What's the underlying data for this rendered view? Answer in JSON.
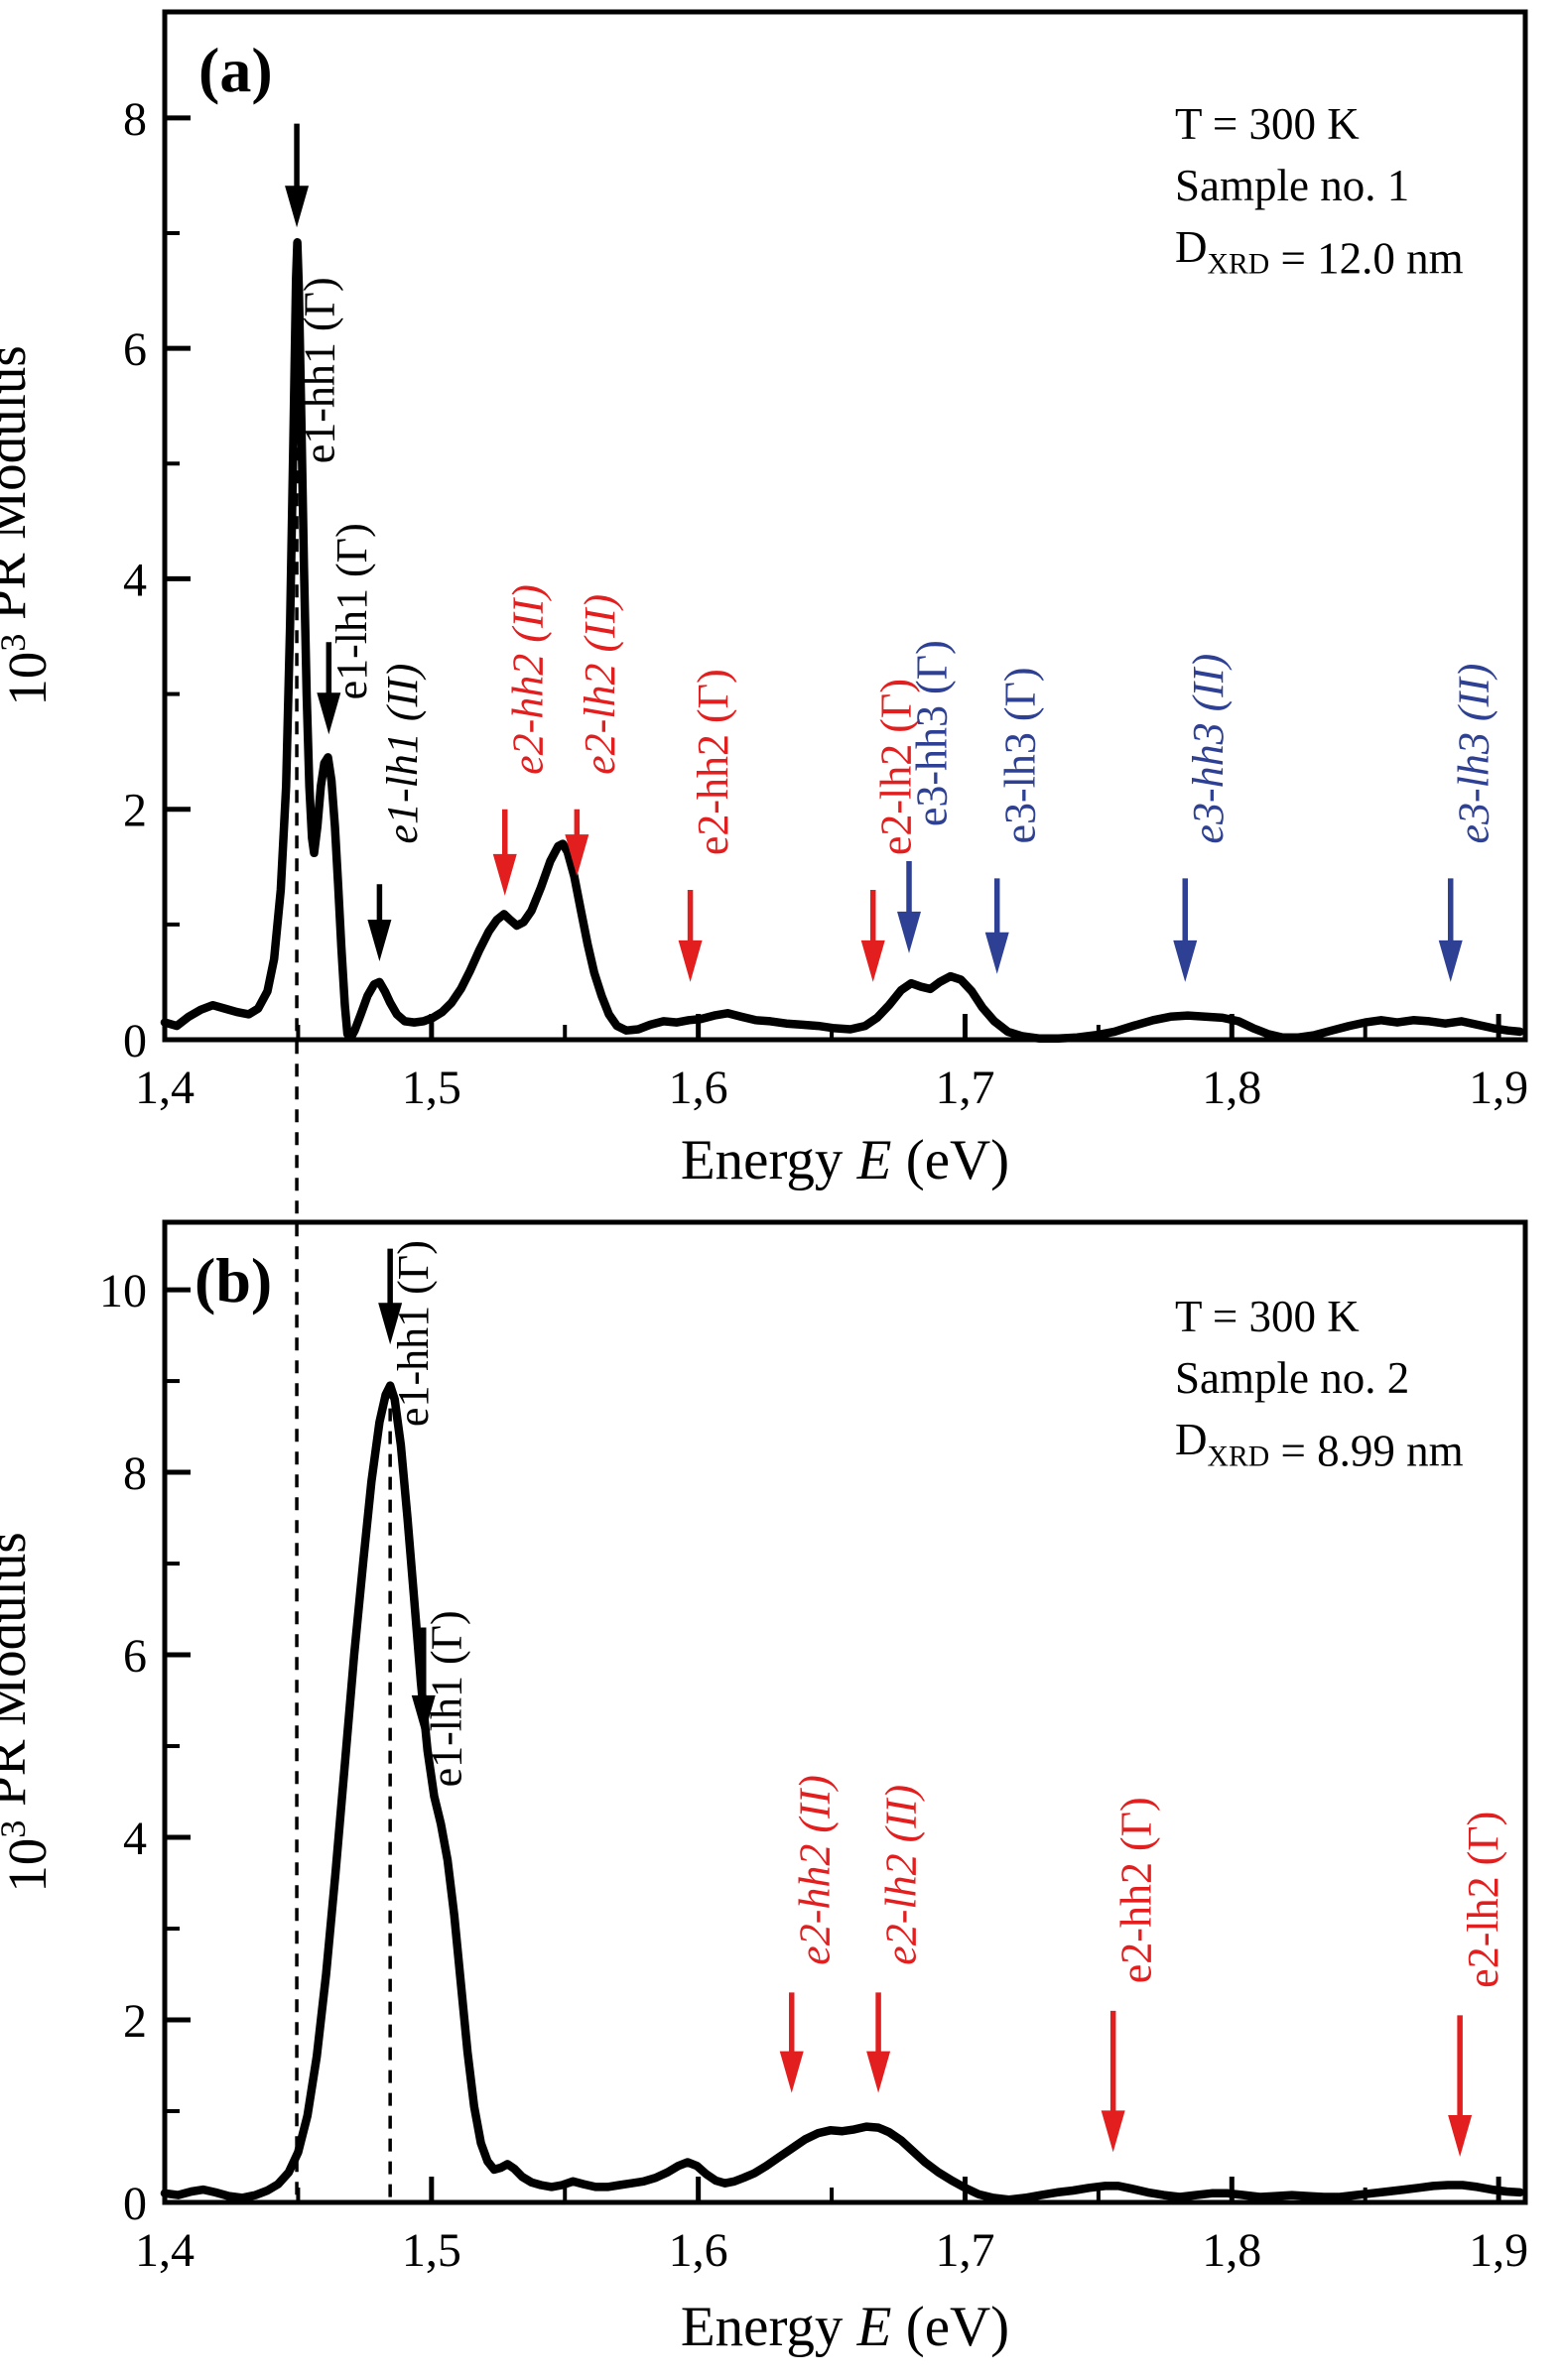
{
  "figure": {
    "background": "#ffffff",
    "colors": {
      "black": "#000000",
      "red": "#e31e1e",
      "blue": "#2e4093"
    },
    "xlabel_runs": [
      {
        "t": "Energy "
      },
      {
        "t": "E",
        "italic": true
      },
      {
        "t": " (eV)"
      }
    ],
    "ylabel_runs": [
      {
        "t": "10"
      },
      {
        "t": "3",
        "sup": true
      },
      {
        "t": " PR Modulus"
      }
    ]
  },
  "chart_data": [
    {
      "type": "line",
      "panel_label": "(a)",
      "info_lines": [
        [
          {
            "t": "T = 300 K"
          }
        ],
        [
          {
            "t": "Sample no. 1"
          }
        ],
        [
          {
            "t": "D"
          },
          {
            "t": "XRD",
            "sub": true
          },
          {
            "t": " = 12.0 nm"
          }
        ]
      ],
      "xlim": [
        1.4,
        1.91
      ],
      "ylim": [
        0,
        8.92
      ],
      "xticks": [
        {
          "v": 1.4,
          "label": "1,4"
        },
        {
          "v": 1.5,
          "label": "1,5"
        },
        {
          "v": 1.6,
          "label": "1,6"
        },
        {
          "v": 1.7,
          "label": "1,7"
        },
        {
          "v": 1.8,
          "label": "1,8"
        },
        {
          "v": 1.9,
          "label": "1,9"
        }
      ],
      "xminor": [
        1.45,
        1.55,
        1.65,
        1.75,
        1.85
      ],
      "yticks": [
        {
          "v": 0,
          "label": "0"
        },
        {
          "v": 2,
          "label": "2"
        },
        {
          "v": 4,
          "label": "4"
        },
        {
          "v": 6,
          "label": "6"
        },
        {
          "v": 8,
          "label": "8"
        }
      ],
      "yminor": [
        1,
        3,
        5,
        7
      ],
      "series": {
        "name": "PR modulus spectrum sample 1",
        "color": "black",
        "x": [
          1.4,
          1.4045,
          1.409,
          1.4135,
          1.418,
          1.4225,
          1.427,
          1.4315,
          1.435,
          1.4385,
          1.441,
          1.4435,
          1.4455,
          1.447,
          1.4482,
          1.4492,
          1.4497,
          1.4503,
          1.4512,
          1.4522,
          1.4532,
          1.4542,
          1.4552,
          1.456,
          1.4572,
          1.4585,
          1.4598,
          1.4612,
          1.4625,
          1.4638,
          1.465,
          1.4662,
          1.4675,
          1.4685,
          1.4698,
          1.4712,
          1.4735,
          1.476,
          1.4785,
          1.4805,
          1.4825,
          1.4845,
          1.487,
          1.49,
          1.4935,
          1.497,
          1.5005,
          1.504,
          1.5075,
          1.511,
          1.5145,
          1.518,
          1.5215,
          1.5245,
          1.5272,
          1.5295,
          1.532,
          1.5345,
          1.5375,
          1.541,
          1.5445,
          1.5475,
          1.5492,
          1.551,
          1.5535,
          1.556,
          1.5585,
          1.561,
          1.5638,
          1.5665,
          1.5695,
          1.573,
          1.5775,
          1.582,
          1.587,
          1.592,
          1.5965,
          1.601,
          1.606,
          1.611,
          1.616,
          1.6215,
          1.627,
          1.633,
          1.639,
          1.645,
          1.651,
          1.657,
          1.6625,
          1.667,
          1.6715,
          1.676,
          1.6798,
          1.6835,
          1.687,
          1.6905,
          1.6945,
          1.6985,
          1.7025,
          1.7065,
          1.711,
          1.716,
          1.7215,
          1.728,
          1.735,
          1.742,
          1.749,
          1.756,
          1.763,
          1.7705,
          1.777,
          1.7835,
          1.79,
          1.7965,
          1.8025,
          1.808,
          1.8135,
          1.819,
          1.825,
          1.831,
          1.8375,
          1.844,
          1.85,
          1.856,
          1.862,
          1.868,
          1.874,
          1.88,
          1.886,
          1.892,
          1.898,
          1.9035,
          1.908
        ],
        "y": [
          0.15,
          0.12,
          0.2,
          0.26,
          0.3,
          0.27,
          0.24,
          0.22,
          0.27,
          0.42,
          0.7,
          1.3,
          2.2,
          3.6,
          5.2,
          6.6,
          6.92,
          6.5,
          5.4,
          4.1,
          3.0,
          2.2,
          1.75,
          1.62,
          1.85,
          2.2,
          2.4,
          2.45,
          2.25,
          1.85,
          1.35,
          0.8,
          0.3,
          0.05,
          0.02,
          0.08,
          0.22,
          0.38,
          0.48,
          0.5,
          0.42,
          0.32,
          0.22,
          0.16,
          0.15,
          0.16,
          0.19,
          0.24,
          0.32,
          0.44,
          0.6,
          0.78,
          0.94,
          1.04,
          1.09,
          1.04,
          0.99,
          1.02,
          1.12,
          1.32,
          1.55,
          1.68,
          1.7,
          1.63,
          1.42,
          1.12,
          0.83,
          0.58,
          0.38,
          0.22,
          0.12,
          0.08,
          0.09,
          0.13,
          0.16,
          0.15,
          0.17,
          0.18,
          0.21,
          0.23,
          0.2,
          0.17,
          0.16,
          0.14,
          0.13,
          0.12,
          0.1,
          0.09,
          0.12,
          0.19,
          0.3,
          0.43,
          0.49,
          0.46,
          0.44,
          0.5,
          0.55,
          0.52,
          0.42,
          0.28,
          0.16,
          0.07,
          0.03,
          0.01,
          0.01,
          0.02,
          0.04,
          0.07,
          0.12,
          0.17,
          0.2,
          0.21,
          0.2,
          0.19,
          0.16,
          0.1,
          0.05,
          0.02,
          0.02,
          0.04,
          0.08,
          0.12,
          0.15,
          0.17,
          0.15,
          0.17,
          0.16,
          0.14,
          0.16,
          0.13,
          0.1,
          0.08,
          0.07
        ]
      },
      "annotations": [
        {
          "label": "e1-hh1 (Γ)",
          "color": "black",
          "italic": false,
          "arrow_x": 1.4495,
          "arrow_from": 7.95,
          "arrow_to": 7.05,
          "label_x": 1.4635,
          "label_y": 5.0
        },
        {
          "label": "e1-lh1 (Γ)",
          "color": "black",
          "italic": false,
          "arrow_x": 1.4615,
          "arrow_from": 3.45,
          "arrow_to": 2.65,
          "label_x": 1.4755,
          "label_y": 2.95
        },
        {
          "label": "e1-lh1 (II)",
          "color": "black",
          "italic": true,
          "arrow_x": 1.4805,
          "arrow_from": 1.35,
          "arrow_to": 0.68,
          "label_x": 1.4945,
          "label_y": 1.7
        },
        {
          "label": "e2-hh2 (II)",
          "color": "red",
          "italic": true,
          "arrow_x": 1.5275,
          "arrow_from": 2.0,
          "arrow_to": 1.25,
          "label_x": 1.5415,
          "label_y": 2.3
        },
        {
          "label": "e2-lh2 (II)",
          "color": "red",
          "italic": true,
          "arrow_x": 1.5545,
          "arrow_from": 2.0,
          "arrow_to": 1.42,
          "label_x": 1.5685,
          "label_y": 2.3
        },
        {
          "label": "e2-hh2 (Γ)",
          "color": "red",
          "italic": false,
          "arrow_x": 1.597,
          "arrow_from": 1.3,
          "arrow_to": 0.5,
          "label_x": 1.611,
          "label_y": 1.6
        },
        {
          "label": "e2-lh2 (Γ)",
          "color": "red",
          "italic": false,
          "arrow_x": 1.6655,
          "arrow_from": 1.3,
          "arrow_to": 0.5,
          "label_x": 1.6795,
          "label_y": 1.6
        },
        {
          "label": "e3-hh3 (Γ)",
          "color": "blue",
          "italic": false,
          "arrow_x": 1.679,
          "arrow_from": 1.55,
          "arrow_to": 0.75,
          "label_x": 1.693,
          "label_y": 1.85
        },
        {
          "label": "e3-lh3 (Γ)",
          "color": "blue",
          "italic": false,
          "arrow_x": 1.712,
          "arrow_from": 1.4,
          "arrow_to": 0.57,
          "label_x": 1.726,
          "label_y": 1.7
        },
        {
          "label": "e3-hh3 (II)",
          "color": "blue",
          "italic": true,
          "arrow_x": 1.7825,
          "arrow_from": 1.4,
          "arrow_to": 0.5,
          "label_x": 1.7965,
          "label_y": 1.7
        },
        {
          "label": "e3-lh3 (II)",
          "color": "blue",
          "italic": true,
          "arrow_x": 1.882,
          "arrow_from": 1.4,
          "arrow_to": 0.5,
          "label_x": 1.896,
          "label_y": 1.7
        }
      ]
    },
    {
      "type": "line",
      "panel_label": "(b)",
      "info_lines": [
        [
          {
            "t": "T = 300 K"
          }
        ],
        [
          {
            "t": "Sample no. 2"
          }
        ],
        [
          {
            "t": "D"
          },
          {
            "t": "XRD",
            "sub": true
          },
          {
            "t": " = 8.99 nm"
          }
        ]
      ],
      "xlim": [
        1.4,
        1.91
      ],
      "ylim": [
        0,
        10.74
      ],
      "xticks": [
        {
          "v": 1.4,
          "label": "1,4"
        },
        {
          "v": 1.5,
          "label": "1,5"
        },
        {
          "v": 1.6,
          "label": "1,6"
        },
        {
          "v": 1.7,
          "label": "1,7"
        },
        {
          "v": 1.8,
          "label": "1,8"
        },
        {
          "v": 1.9,
          "label": "1,9"
        }
      ],
      "xminor": [
        1.45,
        1.55,
        1.65,
        1.75,
        1.85
      ],
      "yticks": [
        {
          "v": 0,
          "label": "0"
        },
        {
          "v": 2,
          "label": "2"
        },
        {
          "v": 4,
          "label": "4"
        },
        {
          "v": 6,
          "label": "6"
        },
        {
          "v": 8,
          "label": "8"
        },
        {
          "v": 10,
          "label": "10"
        }
      ],
      "yminor": [
        1,
        3,
        5,
        7,
        9
      ],
      "series": {
        "name": "PR modulus spectrum sample 2",
        "color": "black",
        "x": [
          1.4,
          1.405,
          1.41,
          1.4145,
          1.419,
          1.424,
          1.429,
          1.434,
          1.4385,
          1.4425,
          1.4465,
          1.45,
          1.4535,
          1.457,
          1.4605,
          1.464,
          1.4675,
          1.471,
          1.4745,
          1.4775,
          1.4805,
          1.4828,
          1.4845,
          1.4862,
          1.4885,
          1.491,
          1.4935,
          1.496,
          1.4985,
          1.501,
          1.5035,
          1.506,
          1.5085,
          1.511,
          1.5135,
          1.516,
          1.5185,
          1.521,
          1.5235,
          1.526,
          1.5285,
          1.531,
          1.534,
          1.5375,
          1.541,
          1.545,
          1.549,
          1.553,
          1.557,
          1.5615,
          1.566,
          1.5705,
          1.575,
          1.5795,
          1.584,
          1.5885,
          1.5925,
          1.596,
          1.5995,
          1.603,
          1.6065,
          1.61,
          1.6135,
          1.617,
          1.621,
          1.6255,
          1.63,
          1.635,
          1.64,
          1.645,
          1.6495,
          1.654,
          1.6585,
          1.663,
          1.6675,
          1.6715,
          1.676,
          1.6805,
          1.685,
          1.69,
          1.695,
          1.7,
          1.705,
          1.7105,
          1.7165,
          1.7225,
          1.7285,
          1.7345,
          1.7405,
          1.7465,
          1.7525,
          1.7575,
          1.7625,
          1.7685,
          1.7745,
          1.7805,
          1.7865,
          1.7925,
          1.7985,
          1.8045,
          1.8105,
          1.8165,
          1.8225,
          1.8285,
          1.8345,
          1.8405,
          1.8465,
          1.8525,
          1.8585,
          1.8645,
          1.87,
          1.8755,
          1.881,
          1.8865,
          1.892,
          1.8975,
          1.903,
          1.908
        ],
        "y": [
          0.1,
          0.08,
          0.12,
          0.14,
          0.11,
          0.07,
          0.05,
          0.08,
          0.13,
          0.2,
          0.33,
          0.55,
          0.95,
          1.6,
          2.5,
          3.6,
          4.8,
          6.0,
          7.05,
          7.9,
          8.55,
          8.85,
          8.95,
          8.8,
          8.3,
          7.5,
          6.6,
          5.7,
          4.95,
          4.45,
          4.15,
          3.75,
          3.15,
          2.4,
          1.65,
          1.05,
          0.65,
          0.45,
          0.36,
          0.38,
          0.42,
          0.37,
          0.28,
          0.22,
          0.19,
          0.17,
          0.19,
          0.23,
          0.2,
          0.17,
          0.17,
          0.19,
          0.21,
          0.23,
          0.27,
          0.33,
          0.4,
          0.44,
          0.4,
          0.31,
          0.24,
          0.21,
          0.23,
          0.27,
          0.32,
          0.4,
          0.49,
          0.59,
          0.69,
          0.76,
          0.79,
          0.78,
          0.8,
          0.83,
          0.82,
          0.77,
          0.68,
          0.56,
          0.44,
          0.33,
          0.24,
          0.16,
          0.09,
          0.05,
          0.03,
          0.05,
          0.08,
          0.11,
          0.13,
          0.16,
          0.18,
          0.18,
          0.15,
          0.11,
          0.08,
          0.06,
          0.08,
          0.1,
          0.1,
          0.08,
          0.06,
          0.07,
          0.08,
          0.07,
          0.06,
          0.06,
          0.08,
          0.1,
          0.12,
          0.14,
          0.16,
          0.18,
          0.19,
          0.19,
          0.17,
          0.14,
          0.12,
          0.11
        ]
      },
      "annotations": [
        {
          "label": "e1-hh1 (Γ)",
          "color": "black",
          "italic": false,
          "arrow_x": 1.4845,
          "arrow_from": 10.45,
          "arrow_to": 9.4,
          "label_x": 1.4985,
          "label_y": 8.5
        },
        {
          "label": "e1-lh1 (Γ)",
          "color": "black",
          "italic": false,
          "arrow_x": 1.497,
          "arrow_from": 6.3,
          "arrow_to": 5.1,
          "label_x": 1.511,
          "label_y": 4.55
        },
        {
          "label": "e2-hh2 (II)",
          "color": "red",
          "italic": true,
          "arrow_x": 1.635,
          "arrow_from": 2.3,
          "arrow_to": 1.2,
          "label_x": 1.649,
          "label_y": 2.6
        },
        {
          "label": "e2-lh2 (II)",
          "color": "red",
          "italic": true,
          "arrow_x": 1.6675,
          "arrow_from": 2.3,
          "arrow_to": 1.2,
          "label_x": 1.6815,
          "label_y": 2.6
        },
        {
          "label": "e2-hh2 (Γ)",
          "color": "red",
          "italic": false,
          "arrow_x": 1.7555,
          "arrow_from": 2.1,
          "arrow_to": 0.55,
          "label_x": 1.7695,
          "label_y": 2.4
        },
        {
          "label": "e2-lh2 (Γ)",
          "color": "red",
          "italic": false,
          "arrow_x": 1.8855,
          "arrow_from": 2.05,
          "arrow_to": 0.5,
          "label_x": 1.8995,
          "label_y": 2.35
        }
      ]
    }
  ],
  "guides": [
    {
      "x": 1.4495,
      "from_panel": 0,
      "from_value": 6.92,
      "to_panel": 1
    },
    {
      "x": 1.4845,
      "from_panel": 1,
      "from_value": 8.95,
      "to_panel": 1
    }
  ]
}
